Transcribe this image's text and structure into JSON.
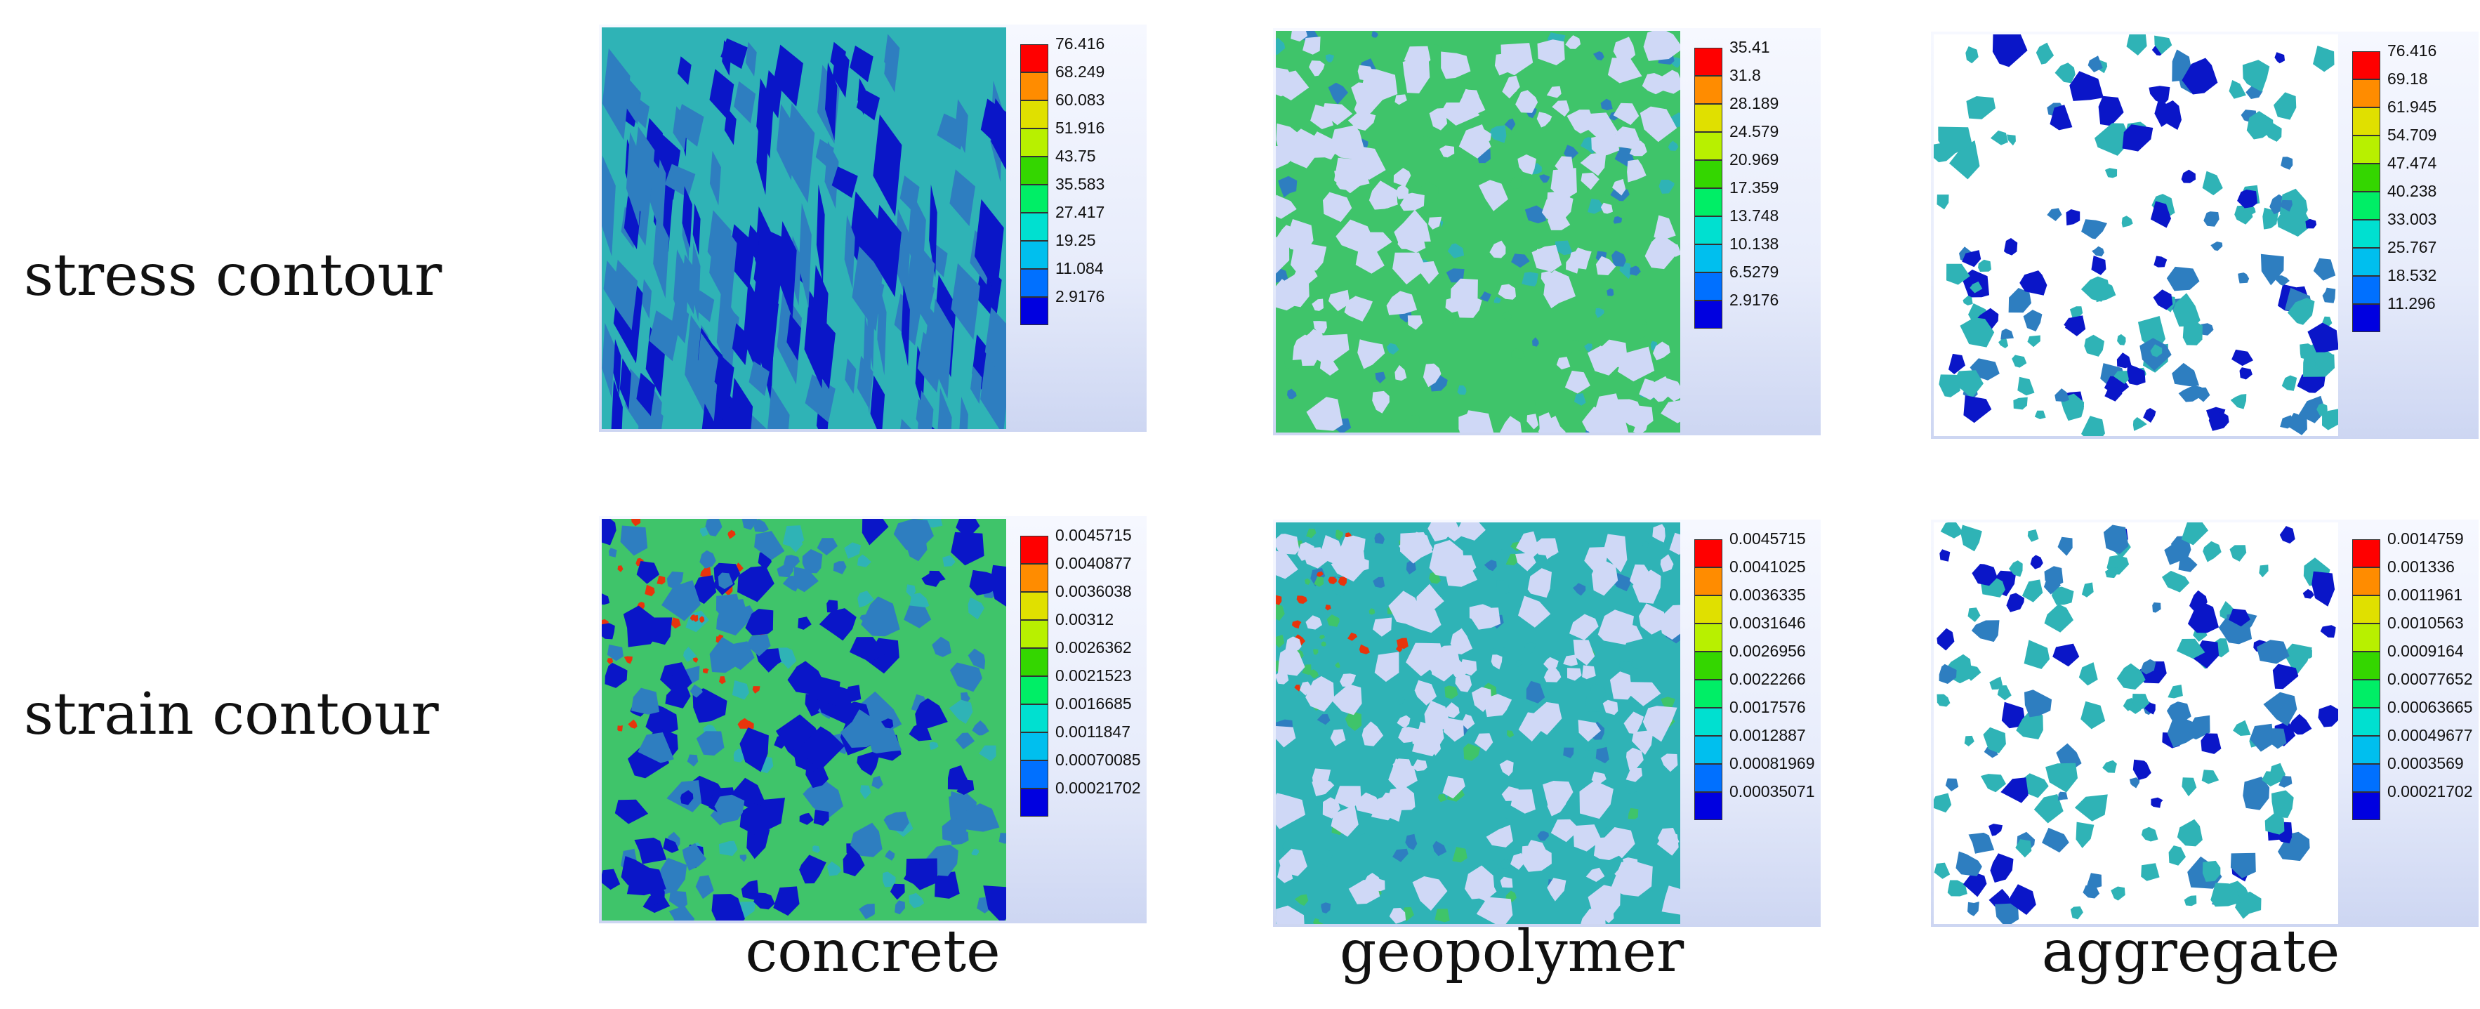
{
  "row_labels": [
    "stress contour",
    "strain contour"
  ],
  "column_labels": [
    "concrete",
    "geopolymer",
    "aggregate"
  ],
  "legend_colors": [
    "#ff0000",
    "#ff8c00",
    "#e0e000",
    "#b8f000",
    "#34d600",
    "#00ee66",
    "#00e0d0",
    "#00bfee",
    "#0070ff",
    "#0000e0"
  ],
  "field_colors": {
    "matrix_teal": "#2fb3b6",
    "matrix_green": "#3fc46a",
    "deep_blue": "#0a16c8",
    "steel_blue": "#2e7ec0",
    "pale_void": "#cfd8f6",
    "hot_red": "#e8340c"
  },
  "panels": [
    {
      "row": 0,
      "col": 0,
      "name": "concrete-stress",
      "legend": [
        "76.416",
        "68.249",
        "60.083",
        "51.916",
        "43.75",
        "35.583",
        "27.417",
        "19.25",
        "11.084",
        "2.9176"
      ]
    },
    {
      "row": 0,
      "col": 1,
      "name": "geopolymer-stress",
      "legend": [
        "35.41",
        "31.8",
        "28.189",
        "24.579",
        "20.969",
        "17.359",
        "13.748",
        "10.138",
        "6.5279",
        "2.9176"
      ]
    },
    {
      "row": 0,
      "col": 2,
      "name": "aggregate-stress",
      "legend": [
        "76.416",
        "69.18",
        "61.945",
        "54.709",
        "47.474",
        "40.238",
        "33.003",
        "25.767",
        "18.532",
        "11.296"
      ]
    },
    {
      "row": 1,
      "col": 0,
      "name": "concrete-strain",
      "legend": [
        "0.0045715",
        "0.0040877",
        "0.0036038",
        "0.00312",
        "0.0026362",
        "0.0021523",
        "0.0016685",
        "0.0011847",
        "0.00070085",
        "0.00021702"
      ]
    },
    {
      "row": 1,
      "col": 1,
      "name": "geopolymer-strain",
      "legend": [
        "0.0045715",
        "0.0041025",
        "0.0036335",
        "0.0031646",
        "0.0026956",
        "0.0022266",
        "0.0017576",
        "0.0012887",
        "0.00081969",
        "0.00035071"
      ]
    },
    {
      "row": 1,
      "col": 2,
      "name": "aggregate-strain",
      "legend": [
        "0.0014759",
        "0.001336",
        "0.0011961",
        "0.0010563",
        "0.0009164",
        "0.00077652",
        "0.00063665",
        "0.00049677",
        "0.0003569",
        "0.00021702"
      ]
    }
  ]
}
